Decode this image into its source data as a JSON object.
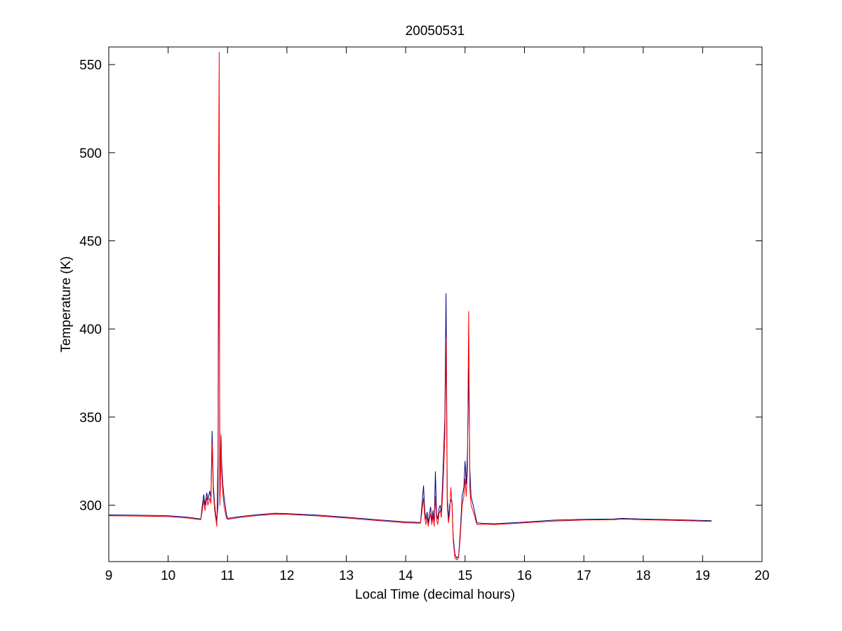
{
  "chart_data": {
    "type": "line",
    "title": "20050531",
    "xlabel": "Local Time (decimal hours)",
    "ylabel": "Temperature (K)",
    "xlim": [
      9,
      20
    ],
    "ylim": [
      268,
      560
    ],
    "xticks": [
      9,
      10,
      11,
      12,
      13,
      14,
      15,
      16,
      17,
      18,
      19,
      20
    ],
    "yticks": [
      300,
      350,
      400,
      450,
      500,
      550
    ],
    "grid": false,
    "legend": "none",
    "series": [
      {
        "color": "#00007f",
        "x": [
          9.0,
          9.5,
          10.0,
          10.3,
          10.55,
          10.58,
          10.6,
          10.62,
          10.65,
          10.67,
          10.7,
          10.72,
          10.74,
          10.76,
          10.78,
          10.8,
          10.82,
          10.84,
          10.85,
          10.86,
          10.87,
          10.88,
          10.89,
          10.9,
          10.92,
          10.94,
          10.96,
          10.98,
          11.0,
          11.2,
          11.5,
          11.8,
          12.0,
          12.5,
          13.0,
          13.5,
          14.0,
          14.25,
          14.3,
          14.32,
          14.34,
          14.36,
          14.38,
          14.4,
          14.42,
          14.44,
          14.46,
          14.48,
          14.5,
          14.52,
          14.54,
          14.56,
          14.58,
          14.6,
          14.62,
          14.64,
          14.66,
          14.68,
          14.7,
          14.72,
          14.74,
          14.76,
          14.78,
          14.8,
          14.83,
          14.86,
          14.89,
          14.92,
          14.95,
          14.98,
          15.0,
          15.02,
          15.04,
          15.06,
          15.08,
          15.1,
          15.15,
          15.2,
          15.3,
          15.5,
          16.0,
          16.5,
          17.0,
          17.5,
          17.65,
          18.0,
          18.5,
          19.0,
          19.15
        ],
        "y": [
          294.5,
          294.3,
          294.0,
          293.3,
          292.2,
          301,
          306,
          300,
          307,
          303,
          308,
          304,
          342,
          312,
          301,
          295,
          291,
          300,
          440,
          470,
          305,
          325,
          340,
          325,
          312,
          305,
          300,
          295,
          292.5,
          293.5,
          294.6,
          295.4,
          295.2,
          294.4,
          293.2,
          291.8,
          290.5,
          290.2,
          311,
          297,
          292,
          296,
          290,
          295,
          299,
          291,
          297,
          289,
          319,
          295,
          292,
          298,
          300,
          296,
          312,
          330,
          350,
          420,
          305,
          292,
          300,
          303,
          302,
          282,
          272,
          270,
          271,
          285,
          305,
          310,
          325,
          312,
          330,
          378,
          320,
          305,
          298,
          290,
          289.7,
          289.5,
          290.4,
          291.5,
          292.0,
          292.2,
          292.5,
          292.1,
          291.8,
          291.3,
          291.2
        ]
      },
      {
        "color": "#ff0000",
        "x": [
          9.0,
          9.5,
          10.0,
          10.3,
          10.55,
          10.58,
          10.6,
          10.62,
          10.65,
          10.67,
          10.7,
          10.72,
          10.74,
          10.76,
          10.78,
          10.8,
          10.82,
          10.84,
          10.85,
          10.86,
          10.87,
          10.88,
          10.89,
          10.9,
          10.92,
          10.94,
          10.96,
          10.98,
          11.0,
          11.2,
          11.5,
          11.8,
          12.0,
          12.5,
          13.0,
          13.5,
          14.0,
          14.25,
          14.3,
          14.32,
          14.34,
          14.36,
          14.38,
          14.4,
          14.42,
          14.44,
          14.46,
          14.48,
          14.5,
          14.52,
          14.54,
          14.56,
          14.58,
          14.6,
          14.62,
          14.64,
          14.66,
          14.68,
          14.7,
          14.72,
          14.74,
          14.76,
          14.78,
          14.8,
          14.83,
          14.86,
          14.89,
          14.92,
          14.95,
          14.98,
          15.0,
          15.02,
          15.04,
          15.06,
          15.08,
          15.1,
          15.15,
          15.2,
          15.3,
          15.5,
          16.0,
          16.5,
          17.0,
          17.5,
          17.65,
          18.0,
          18.5,
          19.0,
          19.15
        ],
        "y": [
          294.0,
          293.8,
          293.5,
          292.8,
          291.8,
          298,
          303,
          297,
          304,
          300,
          304,
          301,
          335,
          308,
          298,
          293,
          288,
          330,
          493,
          557,
          300,
          310,
          340,
          320,
          307,
          300,
          296,
          293,
          292.0,
          293.0,
          294.1,
          294.9,
          294.8,
          293.9,
          292.7,
          291.3,
          290.0,
          289.8,
          304,
          293,
          289,
          293,
          288,
          292,
          295,
          289,
          294,
          288,
          305,
          292,
          289,
          295,
          297,
          293,
          305,
          320,
          340,
          395,
          300,
          290,
          295,
          310,
          300,
          280,
          270,
          269,
          270,
          282,
          300,
          305,
          315,
          305,
          320,
          410,
          310,
          300,
          295,
          289,
          289.2,
          289.0,
          290.0,
          291.0,
          291.6,
          291.8,
          292.1,
          291.7,
          291.4,
          290.9,
          290.8
        ]
      }
    ]
  }
}
